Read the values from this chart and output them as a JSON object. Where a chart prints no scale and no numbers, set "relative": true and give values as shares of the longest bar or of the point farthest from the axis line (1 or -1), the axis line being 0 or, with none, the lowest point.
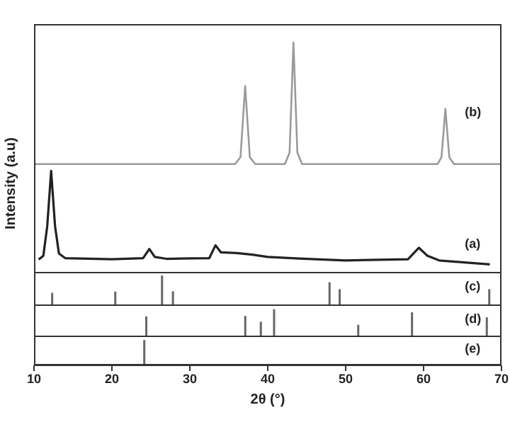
{
  "chart_data": [
    {
      "type": "line",
      "ylabel": "Intensity (a.u)",
      "relative": true,
      "xlim": [
        10,
        70
      ],
      "tick_labels": false,
      "series": [
        {
          "name": "(b)",
          "color": "#9a9a9a",
          "x": [
            10,
            35.8,
            36.5,
            37.1,
            37.7,
            38.4,
            42.2,
            42.8,
            43.3,
            43.8,
            44.4,
            61.8,
            62.3,
            62.8,
            63.3,
            63.9,
            70
          ],
          "values": [
            0.47,
            0.47,
            0.5,
            0.81,
            0.5,
            0.47,
            0.47,
            0.52,
            1,
            0.52,
            0.47,
            0.47,
            0.5,
            0.71,
            0.5,
            0.47,
            0.47
          ]
        },
        {
          "name": "(a)",
          "color": "#222222",
          "x": [
            10.6,
            11.2,
            11.7,
            12.2,
            12.7,
            13.2,
            14,
            20,
            24,
            24.8,
            25.5,
            27,
            32.5,
            33.3,
            34,
            36,
            38,
            40,
            44,
            50,
            58,
            59.4,
            60.5,
            62,
            68.5
          ],
          "values": [
            0.054,
            0.07,
            0.2,
            0.44,
            0.2,
            0.08,
            0.06,
            0.055,
            0.06,
            0.1,
            0.065,
            0.057,
            0.06,
            0.116,
            0.085,
            0.082,
            0.075,
            0.065,
            0.058,
            0.05,
            0.055,
            0.105,
            0.07,
            0.05,
            0.033
          ]
        }
      ]
    },
    {
      "type": "bar",
      "relative": true,
      "xlim": [
        10,
        70
      ],
      "tick_labels": false,
      "series": [
        {
          "name": "(c)",
          "color": "#666666",
          "x": [
            12.3,
            20.4,
            26.4,
            27.8,
            47.9,
            49.2,
            68.4
          ],
          "values": [
            0.43,
            0.47,
            1,
            0.48,
            0.78,
            0.55,
            0.55
          ]
        }
      ]
    },
    {
      "type": "bar",
      "relative": true,
      "xlim": [
        10,
        70
      ],
      "tick_labels": false,
      "series": [
        {
          "name": "(d)",
          "color": "#666666",
          "x": [
            24.4,
            37.1,
            39.1,
            40.8,
            51.6,
            58.5,
            68.1
          ],
          "values": [
            0.74,
            0.76,
            0.55,
            1,
            0.44,
            0.89,
            0.71
          ]
        }
      ]
    },
    {
      "type": "bar",
      "relative": true,
      "xlabel": "2θ (°)",
      "xlim": [
        10,
        70
      ],
      "xticks": [
        10,
        20,
        30,
        40,
        50,
        60,
        70
      ],
      "tick_labels": "x",
      "series": [
        {
          "name": "(e)",
          "color": "#666666",
          "x": [
            24.2
          ],
          "values": [
            1
          ]
        }
      ]
    }
  ]
}
